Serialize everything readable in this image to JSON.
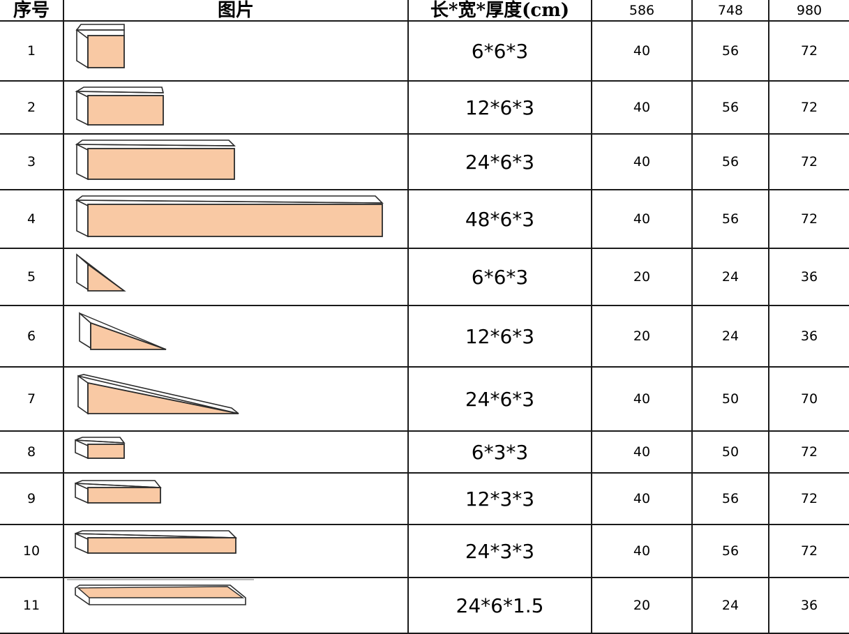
{
  "table": {
    "headers": {
      "index": "序号",
      "image": "图片",
      "dimensions": "长*宽*厚度(cm)",
      "col_586": "586",
      "col_748": "748",
      "col_980": "980"
    },
    "rows": [
      {
        "index": "1",
        "shape": "cube-block",
        "dimensions": "6*6*3",
        "v586": "40",
        "v748": "56",
        "v980": "72"
      },
      {
        "index": "2",
        "shape": "double-block",
        "dimensions": "12*6*3",
        "v586": "40",
        "v748": "56",
        "v980": "72"
      },
      {
        "index": "3",
        "shape": "quad-block",
        "dimensions": "24*6*3",
        "v586": "40",
        "v748": "56",
        "v980": "72"
      },
      {
        "index": "4",
        "shape": "long-block",
        "dimensions": "48*6*3",
        "v586": "40",
        "v748": "56",
        "v980": "72"
      },
      {
        "index": "5",
        "shape": "small-triangle",
        "dimensions": "6*6*3",
        "v586": "20",
        "v748": "24",
        "v980": "36"
      },
      {
        "index": "6",
        "shape": "medium-triangle",
        "dimensions": "12*6*3",
        "v586": "20",
        "v748": "24",
        "v980": "36"
      },
      {
        "index": "7",
        "shape": "long-ramp",
        "dimensions": "24*6*3",
        "v586": "40",
        "v748": "50",
        "v980": "70"
      },
      {
        "index": "8",
        "shape": "flat-small-block",
        "dimensions": "6*3*3",
        "v586": "40",
        "v748": "50",
        "v980": "72"
      },
      {
        "index": "9",
        "shape": "flat-medium-block",
        "dimensions": "12*3*3",
        "v586": "40",
        "v748": "56",
        "v980": "72"
      },
      {
        "index": "10",
        "shape": "flat-long-block",
        "dimensions": "24*3*3",
        "v586": "40",
        "v748": "56",
        "v980": "72"
      },
      {
        "index": "11",
        "shape": "thin-plank",
        "dimensions": "24*6*1.5",
        "v586": "20",
        "v748": "24",
        "v980": "36"
      }
    ]
  },
  "colors": {
    "block_fill": "#f9c9a4",
    "outline": "#2a2a2a",
    "grid_line": "#1a1a1a"
  }
}
